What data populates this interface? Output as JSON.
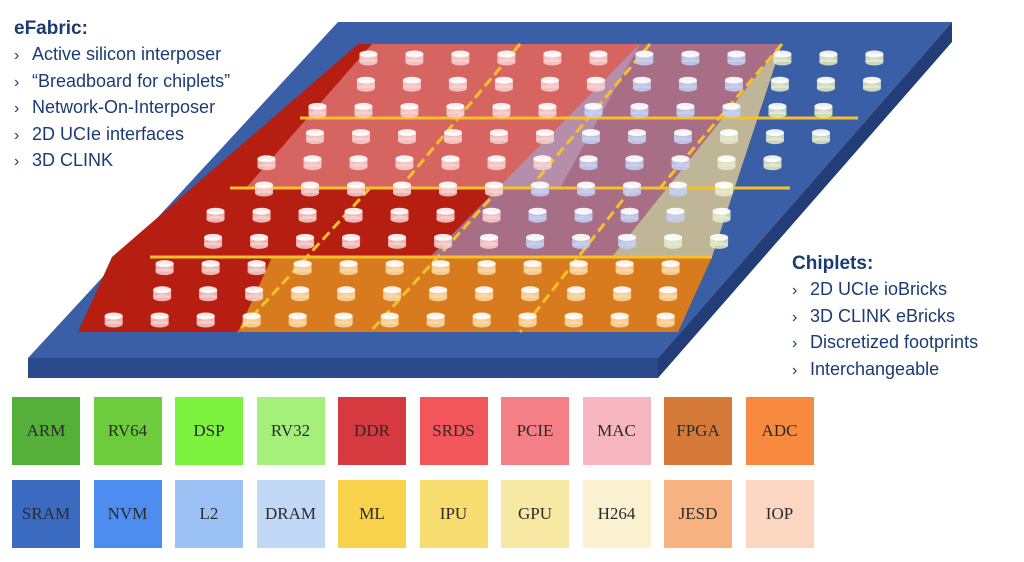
{
  "efabric": {
    "title": "eFabric:",
    "items": [
      "Active silicon interposer",
      "“Breadboard for chiplets”",
      "Network-On-Interposer",
      "2D UCIe interfaces",
      "3D CLINK"
    ]
  },
  "chiplets": {
    "title": "Chiplets:",
    "items": [
      "2D UCIe ioBricks",
      "3D CLINK eBricks",
      "Discretized footprints",
      "Interchangeable"
    ]
  },
  "colors": {
    "text": "#1a3b73",
    "substrate_top": "#3b5fa6",
    "substrate_edge": "#2b4a8c",
    "interposer_red": "#b51e10",
    "interposer_orange": "#d87a1e",
    "link_yellow": "#f5c02a"
  },
  "tiles": [
    {
      "label": "ARM",
      "color": "#55b03a"
    },
    {
      "label": "RV64",
      "color": "#6ccc3c"
    },
    {
      "label": "DSP",
      "color": "#7df23f"
    },
    {
      "label": "RV32",
      "color": "#a4f07a"
    },
    {
      "label": "DDR",
      "color": "#d6393f"
    },
    {
      "label": "SRDS",
      "color": "#f2555a"
    },
    {
      "label": "PCIE",
      "color": "#f47f86"
    },
    {
      "label": "MAC",
      "color": "#f7b7c0"
    },
    {
      "label": "FPGA",
      "color": "#d67a3a"
    },
    {
      "label": "ADC",
      "color": "#f78a3e"
    },
    {
      "label": "SRAM",
      "color": "#3b6bc1"
    },
    {
      "label": "NVM",
      "color": "#4d8df0"
    },
    {
      "label": "L2",
      "color": "#9cc2f5"
    },
    {
      "label": "DRAM",
      "color": "#c2d8f7"
    },
    {
      "label": "ML",
      "color": "#f7d24a"
    },
    {
      "label": "IPU",
      "color": "#f7dc70"
    },
    {
      "label": "GPU",
      "color": "#f7e8a4"
    },
    {
      "label": "H264",
      "color": "#fbf0d0"
    },
    {
      "label": "JESD",
      "color": "#f7b282"
    },
    {
      "label": "IOP",
      "color": "#fbd7c2"
    }
  ]
}
